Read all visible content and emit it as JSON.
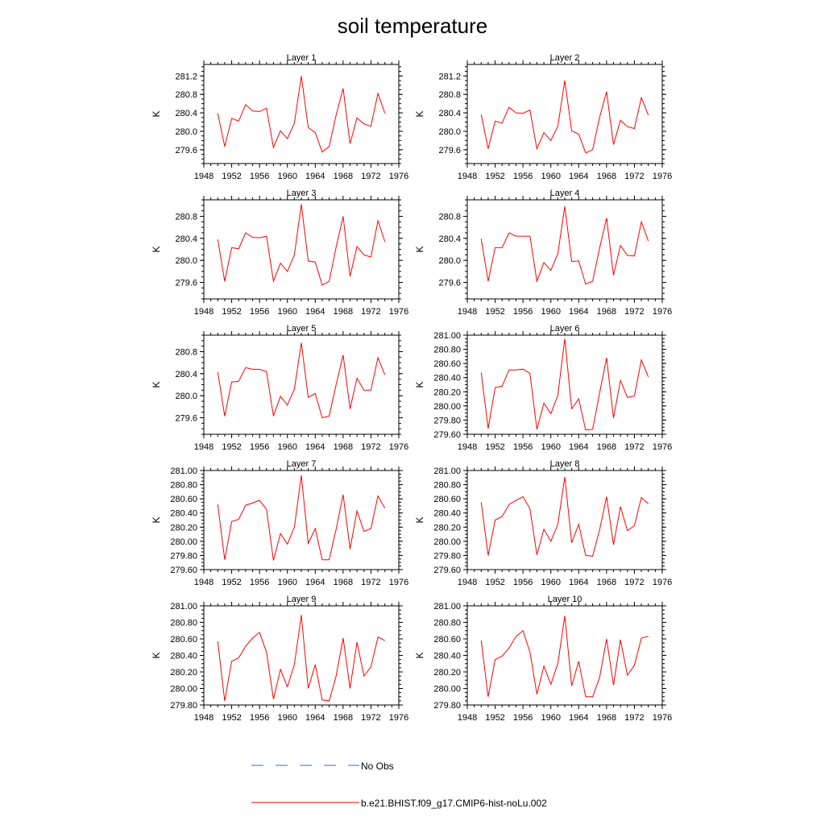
{
  "title": "soil temperature",
  "legend": [
    {
      "label": "No Obs",
      "color": "#4a5fd0",
      "style": "dashed"
    },
    {
      "label": "b.e21.BHIST.f09_g17.CMIP6-hist-noLu.002",
      "color": "#ff0000",
      "style": "solid"
    }
  ],
  "chart_data": [
    {
      "type": "line",
      "title": "Layer 1",
      "xlabel": "",
      "ylabel": "K",
      "xlim": [
        1948,
        1976
      ],
      "ylim": [
        279.3,
        281.45
      ],
      "xticks": [
        "1948",
        "1952",
        "1956",
        "1960",
        "1964",
        "1968",
        "1972",
        "1976"
      ],
      "yticks": [
        "279.6",
        "280.0",
        "280.4",
        "280.8",
        "281.2"
      ],
      "x": [
        1950,
        1951,
        1952,
        1953,
        1954,
        1955,
        1956,
        1957,
        1958,
        1959,
        1960,
        1961,
        1962,
        1963,
        1964,
        1965,
        1966,
        1967,
        1968,
        1969,
        1970,
        1971,
        1972,
        1973,
        1974
      ],
      "series": [
        {
          "name": "b.e21.BHIST.f09_g17.CMIP6-hist-noLu.002",
          "color": "#ff0000",
          "values": [
            280.39,
            279.67,
            280.28,
            280.22,
            280.58,
            280.44,
            280.43,
            280.5,
            279.65,
            280.01,
            279.84,
            280.18,
            281.2,
            280.08,
            279.97,
            279.55,
            279.67,
            280.35,
            280.93,
            279.73,
            280.29,
            280.16,
            280.11,
            280.82,
            280.39
          ]
        }
      ]
    },
    {
      "type": "line",
      "title": "Layer 2",
      "xlabel": "",
      "ylabel": "K",
      "xlim": [
        1948,
        1976
      ],
      "ylim": [
        279.3,
        281.45
      ],
      "xticks": [
        "1948",
        "1952",
        "1956",
        "1960",
        "1964",
        "1968",
        "1972",
        "1976"
      ],
      "yticks": [
        "279.6",
        "280.0",
        "280.4",
        "280.8",
        "281.2"
      ],
      "x": [
        1950,
        1951,
        1952,
        1953,
        1954,
        1955,
        1956,
        1957,
        1958,
        1959,
        1960,
        1961,
        1962,
        1963,
        1964,
        1965,
        1966,
        1967,
        1968,
        1969,
        1970,
        1971,
        1972,
        1973,
        1974
      ],
      "series": [
        {
          "name": "b.e21.BHIST.f09_g17.CMIP6-hist-noLu.002",
          "color": "#ff0000",
          "values": [
            280.36,
            279.62,
            280.22,
            280.18,
            280.52,
            280.4,
            280.39,
            280.46,
            279.62,
            279.97,
            279.8,
            280.11,
            281.1,
            280.01,
            279.94,
            279.53,
            279.6,
            280.3,
            280.86,
            279.71,
            280.24,
            280.1,
            280.06,
            280.73,
            280.35
          ]
        }
      ]
    },
    {
      "type": "line",
      "title": "Layer 3",
      "xlabel": "",
      "ylabel": "K",
      "xlim": [
        1948,
        1976
      ],
      "ylim": [
        279.3,
        281.1
      ],
      "xticks": [
        "1948",
        "1952",
        "1956",
        "1960",
        "1964",
        "1968",
        "1972",
        "1976"
      ],
      "yticks": [
        "279.6",
        "280.0",
        "280.4",
        "280.8"
      ],
      "x": [
        1950,
        1951,
        1952,
        1953,
        1954,
        1955,
        1956,
        1957,
        1958,
        1959,
        1960,
        1961,
        1962,
        1963,
        1964,
        1965,
        1966,
        1967,
        1968,
        1969,
        1970,
        1971,
        1972,
        1973,
        1974
      ],
      "series": [
        {
          "name": "b.e21.BHIST.f09_g17.CMIP6-hist-noLu.002",
          "color": "#ff0000",
          "values": [
            280.38,
            279.62,
            280.23,
            280.21,
            280.5,
            280.42,
            280.41,
            280.44,
            279.62,
            279.95,
            279.8,
            280.1,
            281.02,
            279.99,
            279.97,
            279.55,
            279.62,
            280.24,
            280.8,
            279.71,
            280.25,
            280.1,
            280.06,
            280.72,
            280.34
          ]
        }
      ]
    },
    {
      "type": "line",
      "title": "Layer 4",
      "xlabel": "",
      "ylabel": "K",
      "xlim": [
        1948,
        1976
      ],
      "ylim": [
        279.3,
        281.1
      ],
      "xticks": [
        "1948",
        "1952",
        "1956",
        "1960",
        "1964",
        "1968",
        "1972",
        "1976"
      ],
      "yticks": [
        "279.6",
        "280.0",
        "280.4",
        "280.8"
      ],
      "x": [
        1950,
        1951,
        1952,
        1953,
        1954,
        1955,
        1956,
        1957,
        1958,
        1959,
        1960,
        1961,
        1962,
        1963,
        1964,
        1965,
        1966,
        1967,
        1968,
        1969,
        1970,
        1971,
        1972,
        1973,
        1974
      ],
      "series": [
        {
          "name": "b.e21.BHIST.f09_g17.CMIP6-hist-noLu.002",
          "color": "#ff0000",
          "values": [
            280.39,
            279.62,
            280.23,
            280.23,
            280.5,
            280.44,
            280.44,
            280.44,
            279.62,
            279.96,
            279.82,
            280.12,
            280.98,
            279.98,
            279.99,
            279.57,
            279.62,
            280.22,
            280.77,
            279.73,
            280.27,
            280.09,
            280.08,
            280.7,
            280.35
          ]
        }
      ]
    },
    {
      "type": "line",
      "title": "Layer 5",
      "xlabel": "",
      "ylabel": "K",
      "xlim": [
        1948,
        1976
      ],
      "ylim": [
        279.3,
        281.1
      ],
      "xticks": [
        "1948",
        "1952",
        "1956",
        "1960",
        "1964",
        "1968",
        "1972",
        "1976"
      ],
      "yticks": [
        "279.6",
        "280.0",
        "280.4",
        "280.8"
      ],
      "x": [
        1950,
        1951,
        1952,
        1953,
        1954,
        1955,
        1956,
        1957,
        1958,
        1959,
        1960,
        1961,
        1962,
        1963,
        1964,
        1965,
        1966,
        1967,
        1968,
        1969,
        1970,
        1971,
        1972,
        1973,
        1974
      ],
      "series": [
        {
          "name": "b.e21.BHIST.f09_g17.CMIP6-hist-noLu.002",
          "color": "#ff0000",
          "values": [
            280.43,
            279.63,
            280.25,
            280.26,
            280.51,
            280.48,
            280.48,
            280.44,
            279.63,
            279.99,
            279.83,
            280.12,
            280.96,
            279.97,
            280.04,
            279.6,
            279.63,
            280.2,
            280.74,
            279.76,
            280.32,
            280.1,
            280.1,
            280.69,
            280.38
          ]
        }
      ]
    },
    {
      "type": "line",
      "title": "Layer 6",
      "xlabel": "",
      "ylabel": "K",
      "xlim": [
        1948,
        1976
      ],
      "ylim": [
        279.6,
        281.0
      ],
      "xticks": [
        "1948",
        "1952",
        "1956",
        "1960",
        "1964",
        "1968",
        "1972",
        "1976"
      ],
      "yticks": [
        "279.60",
        "279.80",
        "280.00",
        "280.20",
        "280.40",
        "280.60",
        "280.80",
        "281.00"
      ],
      "x": [
        1950,
        1951,
        1952,
        1953,
        1954,
        1955,
        1956,
        1957,
        1958,
        1959,
        1960,
        1961,
        1962,
        1963,
        1964,
        1965,
        1966,
        1967,
        1968,
        1969,
        1970,
        1971,
        1972,
        1973,
        1974
      ],
      "series": [
        {
          "name": "b.e21.BHIST.f09_g17.CMIP6-hist-noLu.002",
          "color": "#ff0000",
          "values": [
            280.47,
            279.68,
            280.26,
            280.28,
            280.51,
            280.51,
            280.52,
            280.46,
            279.67,
            280.04,
            279.89,
            280.15,
            280.95,
            279.96,
            280.1,
            279.66,
            279.67,
            280.18,
            280.68,
            279.83,
            280.36,
            280.12,
            280.14,
            280.65,
            280.41
          ]
        }
      ]
    },
    {
      "type": "line",
      "title": "Layer 7",
      "xlabel": "",
      "ylabel": "K",
      "xlim": [
        1948,
        1976
      ],
      "ylim": [
        279.6,
        281.0
      ],
      "xticks": [
        "1948",
        "1952",
        "1956",
        "1960",
        "1964",
        "1968",
        "1972",
        "1976"
      ],
      "yticks": [
        "279.60",
        "279.80",
        "280.00",
        "280.20",
        "280.40",
        "280.60",
        "280.80",
        "281.00"
      ],
      "x": [
        1950,
        1951,
        1952,
        1953,
        1954,
        1955,
        1956,
        1957,
        1958,
        1959,
        1960,
        1961,
        1962,
        1963,
        1964,
        1965,
        1966,
        1967,
        1968,
        1969,
        1970,
        1971,
        1972,
        1973,
        1974
      ],
      "series": [
        {
          "name": "b.e21.BHIST.f09_g17.CMIP6-hist-noLu.002",
          "color": "#ff0000",
          "values": [
            280.52,
            279.74,
            280.28,
            280.31,
            280.51,
            280.54,
            280.58,
            280.45,
            279.73,
            280.11,
            279.96,
            280.2,
            280.93,
            279.97,
            280.18,
            279.74,
            279.74,
            280.17,
            280.66,
            279.89,
            280.43,
            280.14,
            280.18,
            280.64,
            280.47
          ]
        }
      ]
    },
    {
      "type": "line",
      "title": "Layer 8",
      "xlabel": "",
      "ylabel": "K",
      "xlim": [
        1948,
        1976
      ],
      "ylim": [
        279.6,
        281.0
      ],
      "xticks": [
        "1948",
        "1952",
        "1956",
        "1960",
        "1964",
        "1968",
        "1972",
        "1976"
      ],
      "yticks": [
        "279.60",
        "279.80",
        "280.00",
        "280.20",
        "280.40",
        "280.60",
        "280.80",
        "281.00"
      ],
      "x": [
        1950,
        1951,
        1952,
        1953,
        1954,
        1955,
        1956,
        1957,
        1958,
        1959,
        1960,
        1961,
        1962,
        1963,
        1964,
        1965,
        1966,
        1967,
        1968,
        1969,
        1970,
        1971,
        1972,
        1973,
        1974
      ],
      "series": [
        {
          "name": "b.e21.BHIST.f09_g17.CMIP6-hist-noLu.002",
          "color": "#ff0000",
          "values": [
            280.55,
            279.8,
            280.3,
            280.35,
            280.52,
            280.58,
            280.63,
            280.46,
            279.81,
            280.17,
            280.0,
            280.24,
            280.91,
            279.98,
            280.24,
            279.8,
            279.79,
            280.16,
            280.63,
            279.95,
            280.49,
            280.15,
            280.22,
            280.62,
            280.53
          ]
        }
      ]
    },
    {
      "type": "line",
      "title": "Layer 9",
      "xlabel": "",
      "ylabel": "K",
      "xlim": [
        1948,
        1976
      ],
      "ylim": [
        279.8,
        281.0
      ],
      "xticks": [
        "1948",
        "1952",
        "1956",
        "1960",
        "1964",
        "1968",
        "1972",
        "1976"
      ],
      "yticks": [
        "279.80",
        "280.00",
        "280.20",
        "280.40",
        "280.60",
        "280.80",
        "281.00"
      ],
      "x": [
        1950,
        1951,
        1952,
        1953,
        1954,
        1955,
        1956,
        1957,
        1958,
        1959,
        1960,
        1961,
        1962,
        1963,
        1964,
        1965,
        1966,
        1967,
        1968,
        1969,
        1970,
        1971,
        1972,
        1973,
        1974
      ],
      "series": [
        {
          "name": "b.e21.BHIST.f09_g17.CMIP6-hist-noLu.002",
          "color": "#ff0000",
          "values": [
            280.57,
            279.85,
            280.33,
            280.37,
            280.51,
            280.61,
            280.68,
            280.44,
            279.87,
            280.23,
            280.02,
            280.29,
            280.89,
            280.0,
            280.29,
            279.86,
            279.85,
            280.15,
            280.61,
            280.0,
            280.56,
            280.15,
            280.26,
            280.62,
            280.58
          ]
        }
      ]
    },
    {
      "type": "line",
      "title": "Layer 10",
      "xlabel": "",
      "ylabel": "K",
      "xlim": [
        1948,
        1976
      ],
      "ylim": [
        279.8,
        281.0
      ],
      "xticks": [
        "1948",
        "1952",
        "1956",
        "1960",
        "1964",
        "1968",
        "1972",
        "1976"
      ],
      "yticks": [
        "279.80",
        "280.00",
        "280.20",
        "280.40",
        "280.60",
        "280.80",
        "281.00"
      ],
      "x": [
        1950,
        1951,
        1952,
        1953,
        1954,
        1955,
        1956,
        1957,
        1958,
        1959,
        1960,
        1961,
        1962,
        1963,
        1964,
        1965,
        1966,
        1967,
        1968,
        1969,
        1970,
        1971,
        1972,
        1973,
        1974
      ],
      "series": [
        {
          "name": "b.e21.BHIST.f09_g17.CMIP6-hist-noLu.002",
          "color": "#ff0000",
          "values": [
            280.58,
            279.9,
            280.35,
            280.39,
            280.49,
            280.63,
            280.7,
            280.44,
            279.93,
            280.27,
            280.05,
            280.3,
            280.88,
            280.03,
            280.33,
            279.9,
            279.9,
            280.13,
            280.6,
            280.04,
            280.59,
            280.16,
            280.28,
            280.61,
            280.63
          ]
        }
      ]
    }
  ]
}
